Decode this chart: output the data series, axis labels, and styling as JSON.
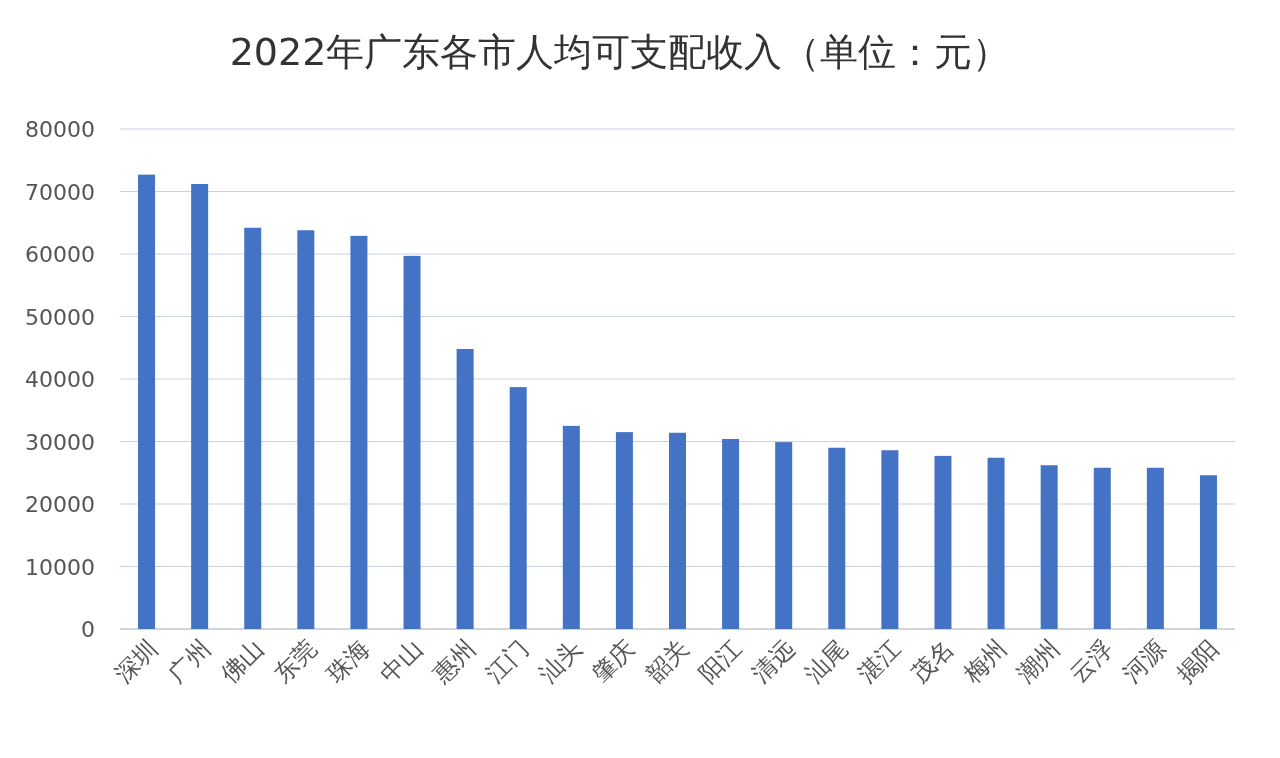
{
  "chart_data": {
    "type": "bar",
    "title": "2022年广东各市人均可支配收入（单位：元）",
    "categories": [
      "深圳",
      "广州",
      "佛山",
      "东莞",
      "珠海",
      "中山",
      "惠州",
      "江门",
      "汕头",
      "肇庆",
      "韶关",
      "阳江",
      "清远",
      "汕尾",
      "湛江",
      "茂名",
      "梅州",
      "潮州",
      "云浮",
      "河源",
      "揭阳"
    ],
    "values": [
      72700,
      71200,
      64200,
      63800,
      62900,
      59700,
      44800,
      38700,
      32500,
      31500,
      31400,
      30400,
      29900,
      29000,
      28600,
      27700,
      27400,
      26200,
      25800,
      25800,
      24600
    ],
    "color": "#4472c4",
    "ylim": [
      0,
      80000
    ],
    "yticks": [
      0,
      10000,
      20000,
      30000,
      40000,
      50000,
      60000,
      70000,
      80000
    ],
    "grid": "y"
  }
}
